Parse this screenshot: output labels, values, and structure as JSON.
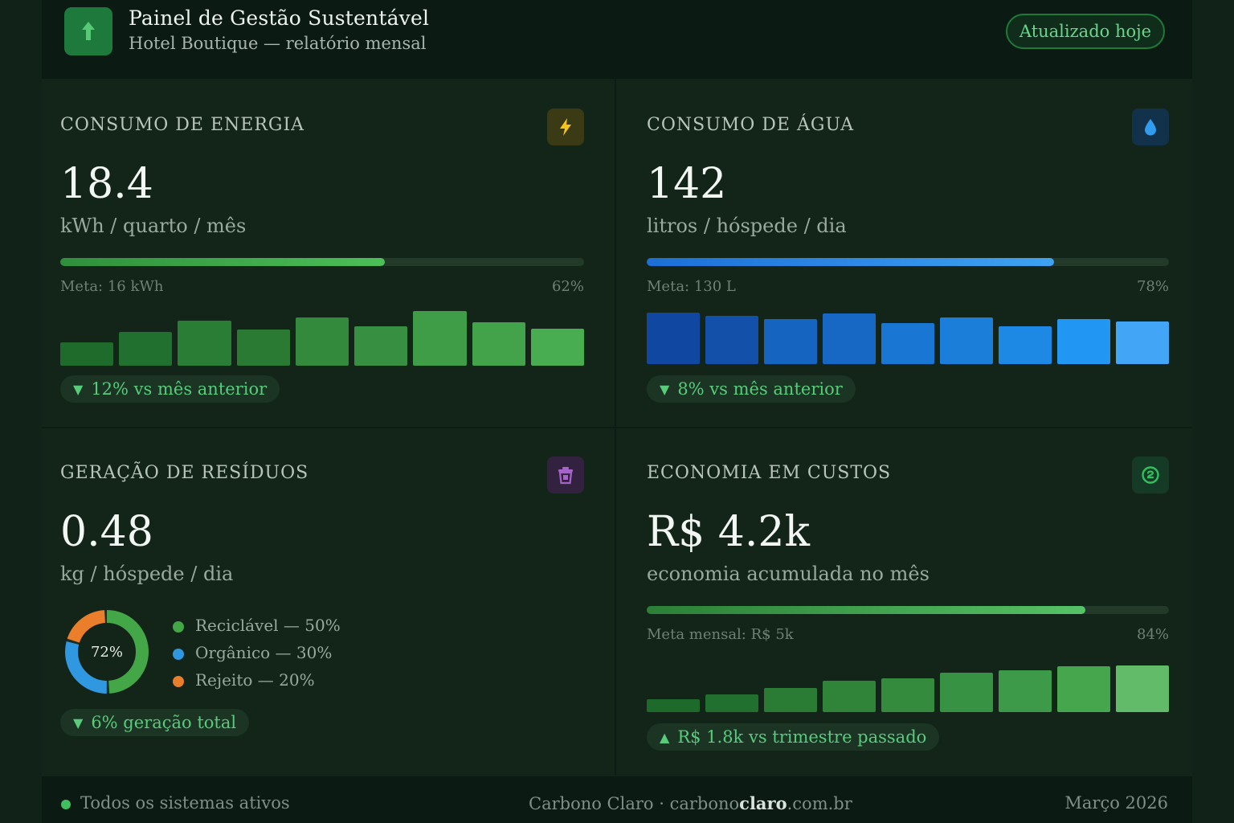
{
  "header": {
    "title": "Painel de Gestão Sustentável",
    "subtitle": "Hotel Boutique — relatório mensal",
    "status_badge": "Atualizado hoje"
  },
  "energy": {
    "title": "CONSUMO DE ENERGIA",
    "icon": "lightning-icon",
    "value": "18.4",
    "unit": "kWh / quarto / mês",
    "progress_pct": 62,
    "meta_label": "Meta: 16 kWh",
    "progress_label": "62%",
    "trend_label": "12% vs mês anterior",
    "trend_direction": "down",
    "bar_levels": [
      0.42,
      0.6,
      0.8,
      0.64,
      0.86,
      0.7,
      0.97,
      0.77,
      0.66
    ],
    "bar_colors": [
      "#1e6b2c",
      "#22702f",
      "#2a7d35",
      "#2a7a34",
      "#348a3c",
      "#379041",
      "#3f9c47",
      "#43a34b",
      "#47ad50"
    ]
  },
  "water": {
    "title": "CONSUMO DE ÁGUA",
    "icon": "water-drop-icon",
    "value": "142",
    "unit": "litros / hóspede / dia",
    "progress_pct": 78,
    "meta_label": "Meta: 130 L",
    "progress_label": "78%",
    "trend_label": "8% vs mês anterior",
    "trend_direction": "down",
    "bar_levels": [
      1.0,
      0.94,
      0.87,
      0.98,
      0.8,
      0.9,
      0.73,
      0.87,
      0.83
    ],
    "bar_colors": [
      "#0f47a1",
      "#1250aa",
      "#1565c0",
      "#1768c4",
      "#1976d2",
      "#1b7ed8",
      "#1e88e5",
      "#2196f3",
      "#42a5f5"
    ]
  },
  "waste": {
    "title": "GERAÇÃO DE RESÍDUOS",
    "icon": "trash-icon",
    "value": "0.48",
    "unit": "kg / hóspede / dia",
    "donut_center": "72%",
    "segments": [
      {
        "label": "Reciclável — 50%",
        "pct": 50,
        "color": "#43a747"
      },
      {
        "label": "Orgânico — 30%",
        "pct": 30,
        "color": "#2f98e0"
      },
      {
        "label": "Rejeito — 20%",
        "pct": 20,
        "color": "#ea7e2b"
      }
    ],
    "trend_label": "6% geração total",
    "trend_direction": "down"
  },
  "savings": {
    "title": "ECONOMIA EM CUSTOS",
    "icon": "money-icon",
    "value": "R$ 4.2k",
    "unit": "economia acumulada no mês",
    "progress_pct": 84,
    "meta_label": "Meta mensal: R$ 5k",
    "progress_label": "84%",
    "trend_label": "R$ 1.8k vs trimestre passado",
    "trend_direction": "up",
    "bar_levels": [
      0.27,
      0.38,
      0.52,
      0.67,
      0.72,
      0.84,
      0.9,
      0.98,
      1.0
    ],
    "bar_colors": [
      "#1d6a2b",
      "#21702f",
      "#2a7c35",
      "#2f8439",
      "#348b3d",
      "#389244",
      "#3c9a48",
      "#45a64d",
      "#62bb68"
    ]
  },
  "footer": {
    "status": "Todos os sistemas ativos",
    "brand_prefix": "Carbono Claro · carbono",
    "brand_bold": "claro",
    "brand_suffix": ".com.br",
    "date": "Março 2026"
  }
}
